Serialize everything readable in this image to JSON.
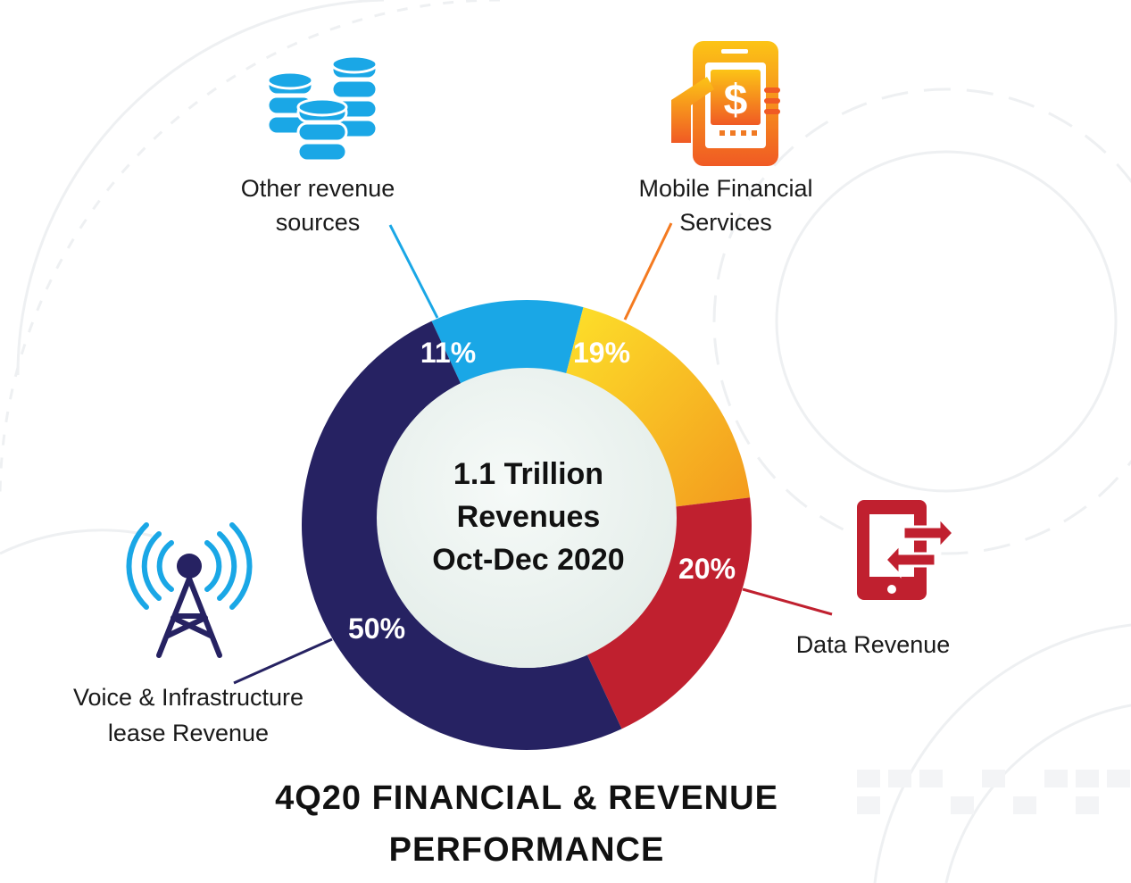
{
  "chart_data": {
    "type": "pie",
    "donut": true,
    "center_text": [
      "1.1 Trillion",
      "Revenues",
      "Oct-Dec 2020"
    ],
    "footer_title": [
      "4Q20 FINANCIAL & REVENUE",
      "PERFORMANCE"
    ],
    "slices": [
      {
        "label_lines": [
          "Other revenue",
          "sources"
        ],
        "value": 11,
        "value_label": "11%",
        "color": "#1aa7e6",
        "icon": "database-coins-icon"
      },
      {
        "label_lines": [
          "Mobile Financial",
          "Services"
        ],
        "value": 19,
        "value_label": "19%",
        "color": "#f7b11d",
        "icon": "mobile-payment-dollar-icon"
      },
      {
        "label_lines": [
          "Data Revenue"
        ],
        "value": 20,
        "value_label": "20%",
        "color": "#c0202f",
        "icon": "tablet-transfer-icon"
      },
      {
        "label_lines": [
          "Voice & Infrastructure",
          "lease Revenue"
        ],
        "value": 50,
        "value_label": "50%",
        "color": "#262262",
        "icon": "signal-tower-icon"
      }
    ]
  },
  "colors": {
    "center_fill": "#eef4f1",
    "mfs_gradient_start": "#fde12a",
    "mfs_gradient_end": "#f39a1e",
    "icon_blue": "#1aa7e6",
    "icon_red": "#c0202f",
    "icon_navy": "#262262"
  }
}
